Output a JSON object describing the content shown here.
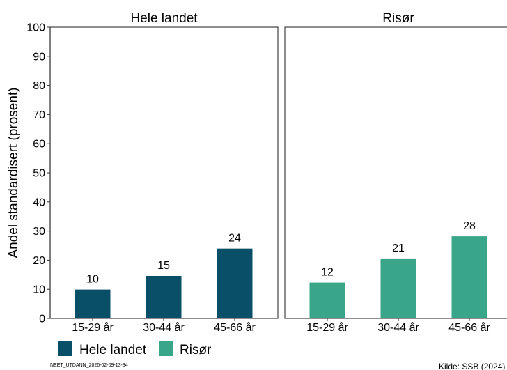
{
  "chart_data": {
    "type": "bar",
    "ylabel": "Andel standardisert (prosent)",
    "ylim": [
      0,
      100
    ],
    "yticks": [
      0,
      10,
      20,
      30,
      40,
      50,
      60,
      70,
      80,
      90,
      100
    ],
    "categories": [
      "15-29 år",
      "30-44 år",
      "45-66 år"
    ],
    "grid": false,
    "legend_position": "bottom-left",
    "panels": [
      {
        "title": "Hele landet",
        "series_name": "Hele landet",
        "color": "#0a4f68",
        "values": [
          9.9,
          14.6,
          24.0
        ],
        "labels": [
          "10",
          "15",
          "24"
        ]
      },
      {
        "title": "Risør",
        "series_name": "Risør",
        "color": "#39a589",
        "values": [
          12.3,
          20.6,
          28.2
        ],
        "labels": [
          "12",
          "21",
          "28"
        ]
      }
    ]
  },
  "footer": {
    "id_text": "NEET_UTDANN_2026-02-09-13-34",
    "source": "Kilde: SSB (2024)"
  }
}
